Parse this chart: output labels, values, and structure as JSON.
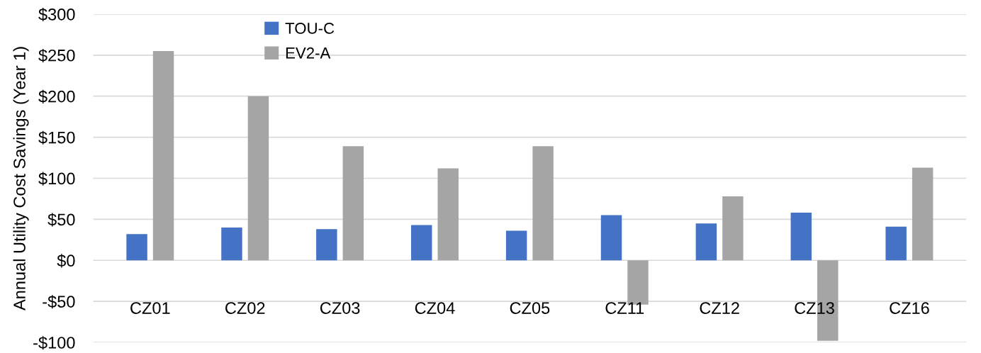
{
  "chart_data": {
    "type": "bar",
    "ylabel": "Annual Utility Cost Savings (Year 1)",
    "categories": [
      "CZ01",
      "CZ02",
      "CZ03",
      "CZ04",
      "CZ05",
      "CZ11",
      "CZ12",
      "CZ13",
      "CZ16"
    ],
    "series": [
      {
        "name": "TOU-C",
        "color": "#4472c4",
        "values": [
          32,
          40,
          38,
          43,
          36,
          55,
          45,
          58,
          41
        ]
      },
      {
        "name": "EV2-A",
        "color": "#a5a5a5",
        "values": [
          255,
          200,
          139,
          112,
          139,
          -54,
          78,
          -98,
          113
        ]
      }
    ],
    "ylim": [
      -100,
      300
    ],
    "yticks": [
      {
        "value": -100,
        "label": "-$100"
      },
      {
        "value": -50,
        "label": "-$50"
      },
      {
        "value": 0,
        "label": "$0"
      },
      {
        "value": 50,
        "label": "$50"
      },
      {
        "value": 100,
        "label": "$100"
      },
      {
        "value": 150,
        "label": "$150"
      },
      {
        "value": 200,
        "label": "$200"
      },
      {
        "value": 250,
        "label": "$250"
      },
      {
        "value": 300,
        "label": "$300"
      }
    ],
    "grid": "y",
    "legend": "top left"
  }
}
